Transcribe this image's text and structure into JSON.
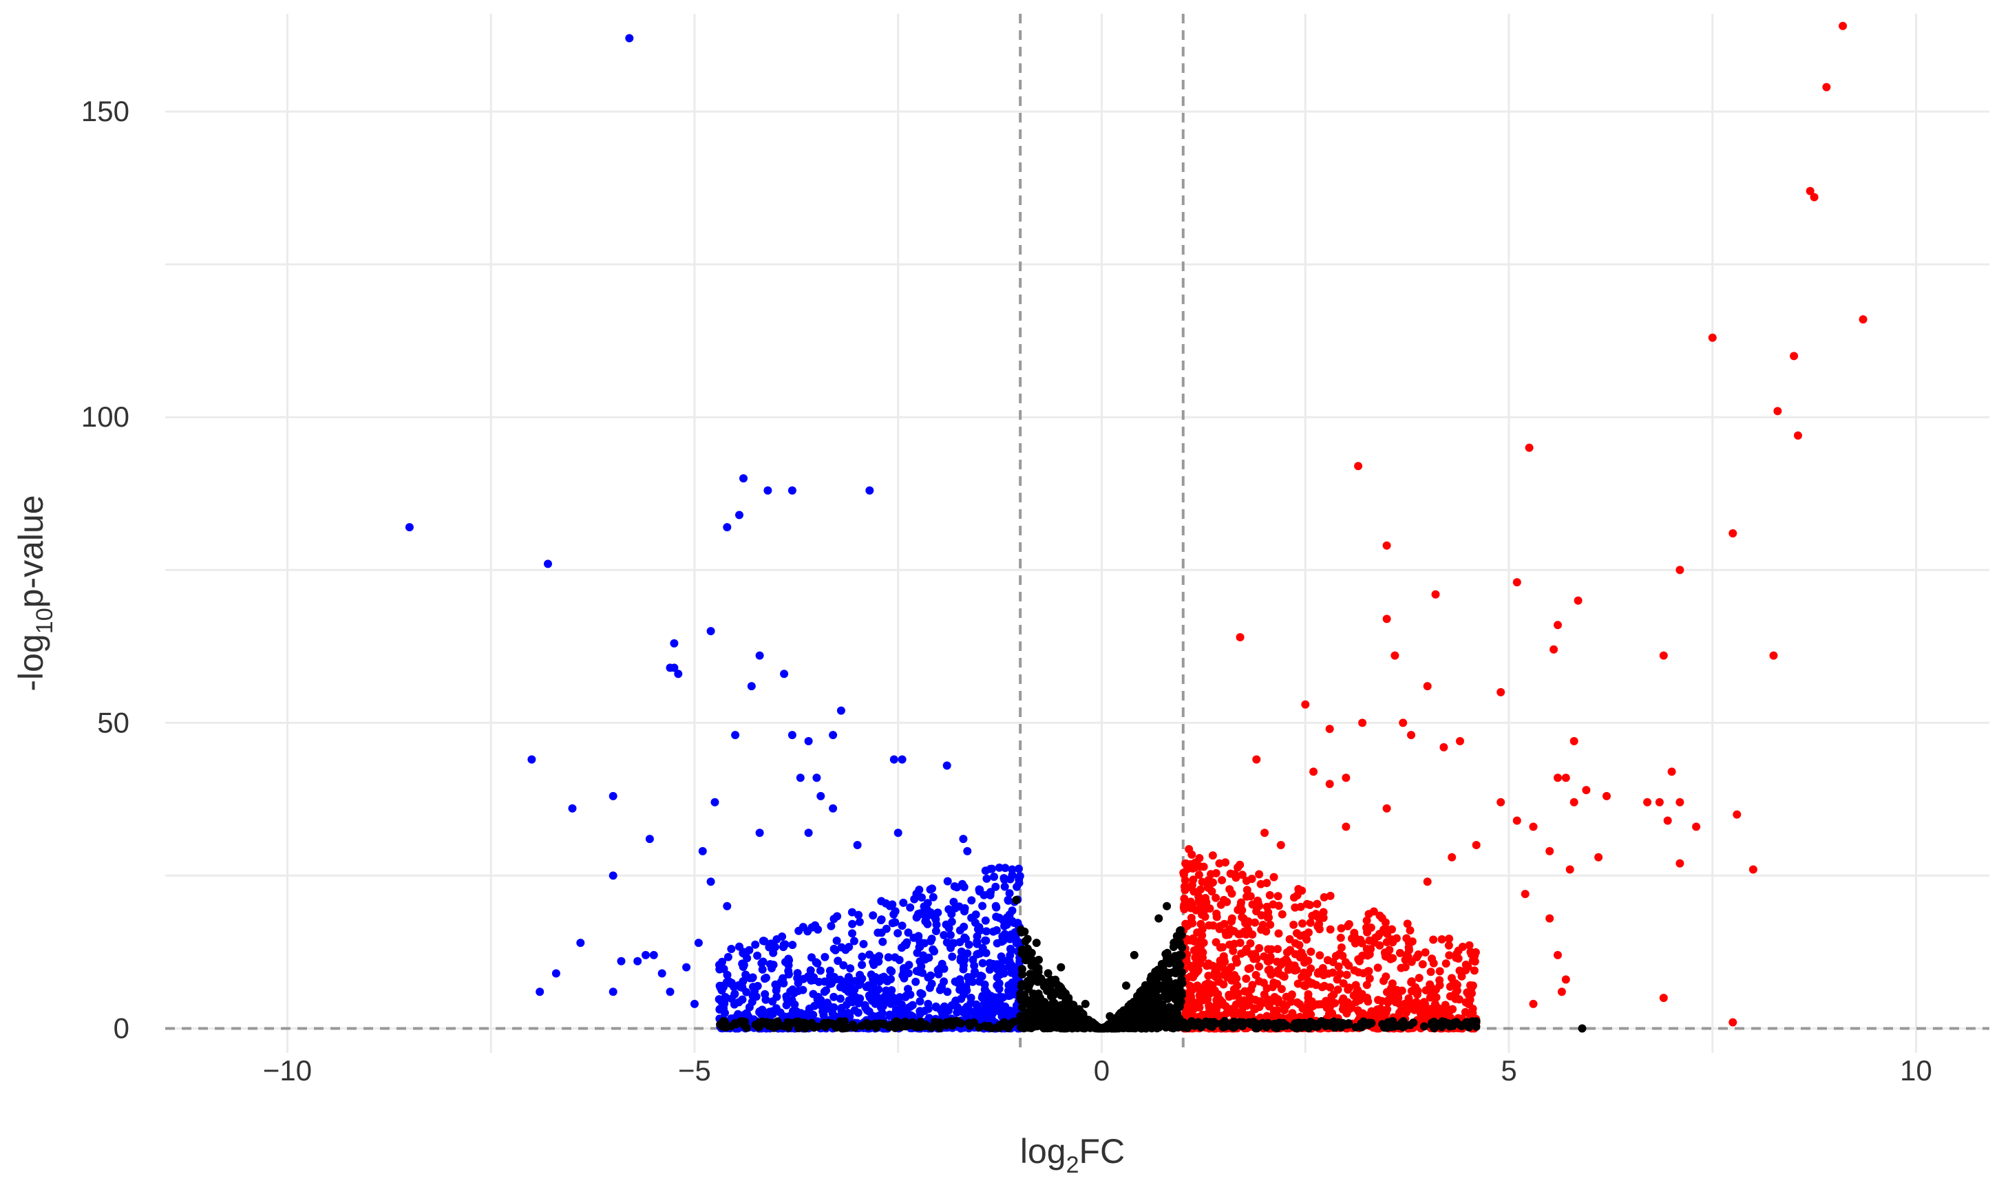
{
  "chart_data": {
    "type": "scatter",
    "title": "",
    "xlabel": {
      "prefix": "log",
      "sub": "2",
      "suffix": "FC"
    },
    "ylabel": {
      "prefix": "-log",
      "sub": "10",
      "suffix": "p-value"
    },
    "xlim": [
      -11.5,
      10.9
    ],
    "ylim": [
      -4,
      166
    ],
    "x_ticks": [
      -10,
      -5,
      0,
      5,
      10
    ],
    "y_ticks": [
      0,
      50,
      100,
      150
    ],
    "thresholds": {
      "log2fc": [
        -1,
        1
      ],
      "neg_log10_p": 0
    },
    "grid": true,
    "legend": "none",
    "colors": {
      "down": "#0000ff",
      "up": "#ff0000",
      "not_significant": "#000000",
      "threshold_line": "#999999",
      "grid": "#ebebeb"
    },
    "series": [
      {
        "group": "down",
        "points": [
          [
            -5.8,
            162
          ],
          [
            -8.5,
            82
          ],
          [
            -6.8,
            76
          ],
          [
            -7.0,
            44
          ],
          [
            -6.5,
            36
          ],
          [
            -6.0,
            38
          ],
          [
            -6.0,
            25
          ],
          [
            -6.4,
            14
          ],
          [
            -6.7,
            9
          ],
          [
            -6.9,
            6
          ],
          [
            -6.0,
            6
          ],
          [
            -5.9,
            11
          ],
          [
            -5.7,
            11
          ],
          [
            -5.6,
            12
          ],
          [
            -5.55,
            31
          ],
          [
            -5.5,
            12
          ],
          [
            -5.4,
            9
          ],
          [
            -5.3,
            6
          ],
          [
            -5.3,
            59
          ],
          [
            -5.25,
            59
          ],
          [
            -5.2,
            58
          ],
          [
            -5.25,
            63
          ],
          [
            -5.0,
            4
          ],
          [
            -4.9,
            29
          ],
          [
            -4.8,
            65
          ],
          [
            -4.75,
            37
          ],
          [
            -4.5,
            48
          ],
          [
            -4.4,
            90
          ],
          [
            -4.45,
            84
          ],
          [
            -4.6,
            82
          ],
          [
            -4.1,
            88
          ],
          [
            -3.8,
            88
          ],
          [
            -4.3,
            56
          ],
          [
            -4.2,
            61
          ],
          [
            -3.9,
            58
          ],
          [
            -3.8,
            48
          ],
          [
            -3.6,
            47
          ],
          [
            -3.3,
            48
          ],
          [
            -3.2,
            52
          ],
          [
            -2.85,
            88
          ],
          [
            -3.7,
            41
          ],
          [
            -3.5,
            41
          ],
          [
            -3.45,
            38
          ],
          [
            -3.3,
            36
          ],
          [
            -2.55,
            44
          ],
          [
            -2.45,
            44
          ],
          [
            -1.9,
            43
          ],
          [
            -1.7,
            31
          ],
          [
            -1.65,
            29
          ],
          [
            -2.5,
            32
          ],
          [
            -3.0,
            30
          ],
          [
            -3.6,
            32
          ],
          [
            -4.2,
            32
          ],
          [
            -4.8,
            24
          ],
          [
            -4.6,
            20
          ],
          [
            -1.1,
            26
          ],
          [
            -1.15,
            21
          ],
          [
            -1.3,
            20
          ],
          [
            -5.1,
            10
          ],
          [
            -4.95,
            14
          ]
        ],
        "cloud": {
          "x_range": [
            -4.7,
            -1.0
          ],
          "y_max": 28,
          "count": 1100
        }
      },
      {
        "group": "up",
        "points": [
          [
            9.1,
            164
          ],
          [
            8.9,
            154
          ],
          [
            8.7,
            137
          ],
          [
            8.75,
            136
          ],
          [
            9.35,
            116
          ],
          [
            7.5,
            113
          ],
          [
            8.5,
            110
          ],
          [
            8.3,
            101
          ],
          [
            8.55,
            97
          ],
          [
            7.75,
            81
          ],
          [
            7.1,
            75
          ],
          [
            8.25,
            61
          ],
          [
            6.9,
            61
          ],
          [
            7.0,
            42
          ],
          [
            7.1,
            37
          ],
          [
            6.85,
            37
          ],
          [
            6.7,
            37
          ],
          [
            6.95,
            34
          ],
          [
            7.3,
            33
          ],
          [
            7.8,
            35
          ],
          [
            8.0,
            26
          ],
          [
            7.1,
            27
          ],
          [
            6.9,
            5
          ],
          [
            7.75,
            1
          ],
          [
            3.15,
            92
          ],
          [
            3.5,
            79
          ],
          [
            5.25,
            95
          ],
          [
            3.5,
            67
          ],
          [
            3.6,
            61
          ],
          [
            1.7,
            64
          ],
          [
            4.1,
            71
          ],
          [
            5.1,
            73
          ],
          [
            5.85,
            70
          ],
          [
            5.6,
            66
          ],
          [
            5.55,
            62
          ],
          [
            4.0,
            56
          ],
          [
            4.9,
            55
          ],
          [
            2.5,
            53
          ],
          [
            3.2,
            50
          ],
          [
            3.7,
            50
          ],
          [
            2.8,
            49
          ],
          [
            3.8,
            48
          ],
          [
            4.4,
            47
          ],
          [
            4.2,
            46
          ],
          [
            5.8,
            47
          ],
          [
            1.9,
            44
          ],
          [
            5.6,
            41
          ],
          [
            5.7,
            41
          ],
          [
            5.95,
            39
          ],
          [
            5.8,
            37
          ],
          [
            6.2,
            38
          ],
          [
            3.0,
            41
          ],
          [
            2.8,
            40
          ],
          [
            2.6,
            42
          ],
          [
            4.9,
            37
          ],
          [
            5.1,
            34
          ],
          [
            5.3,
            33
          ],
          [
            5.5,
            29
          ],
          [
            6.1,
            28
          ],
          [
            5.75,
            26
          ],
          [
            5.2,
            22
          ],
          [
            5.5,
            18
          ],
          [
            5.6,
            12
          ],
          [
            5.7,
            8
          ],
          [
            5.65,
            6
          ],
          [
            5.3,
            4
          ],
          [
            3.2,
            5
          ],
          [
            1.5,
            21
          ],
          [
            1.6,
            18
          ],
          [
            2.0,
            32
          ],
          [
            2.2,
            30
          ],
          [
            3.5,
            36
          ],
          [
            3.0,
            33
          ],
          [
            4.6,
            30
          ],
          [
            4.3,
            28
          ],
          [
            4.0,
            24
          ]
        ],
        "cloud": {
          "x_range": [
            1.0,
            4.6
          ],
          "y_max": 30,
          "count": 1150
        }
      },
      {
        "group": "not_significant",
        "points": [
          [
            5.9,
            0
          ],
          [
            -1.05,
            21
          ],
          [
            0.8,
            20
          ],
          [
            0.7,
            18
          ],
          [
            -0.8,
            14
          ],
          [
            0.4,
            12
          ],
          [
            -0.5,
            10
          ],
          [
            0.3,
            7
          ],
          [
            -0.2,
            4
          ],
          [
            0.1,
            2
          ],
          [
            0.0,
            0
          ]
        ],
        "cloud": {
          "x_range": [
            -1.0,
            1.0
          ],
          "y_max": 17,
          "count": 850
        }
      }
    ]
  }
}
